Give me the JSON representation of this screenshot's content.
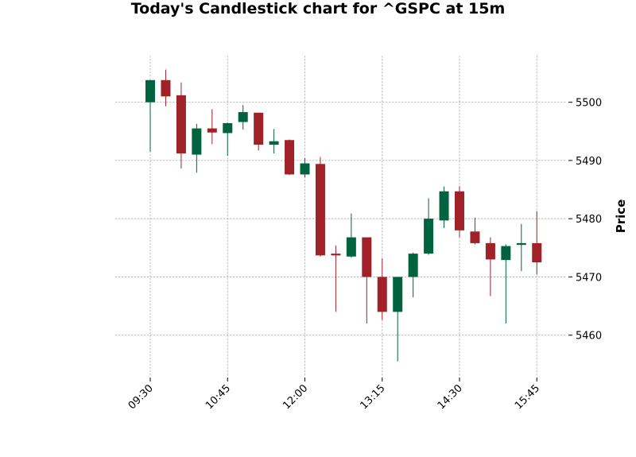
{
  "chart_data": {
    "type": "candlestick",
    "title": "Today's Candlestick chart for ^GSPC at 15m",
    "ylabel": "Price",
    "xlabel": "",
    "ylim": [
      5453,
      5508
    ],
    "y_ticks": [
      5460,
      5470,
      5480,
      5490,
      5500
    ],
    "x_tick_labels": [
      {
        "index": 0,
        "label": "09:30"
      },
      {
        "index": 5,
        "label": "10:45"
      },
      {
        "index": 10,
        "label": "12:00"
      },
      {
        "index": 15,
        "label": "13:15"
      },
      {
        "index": 20,
        "label": "14:30"
      },
      {
        "index": 25,
        "label": "15:45"
      }
    ],
    "grid": true,
    "up_color": "#006340",
    "down_color": "#a02128",
    "candles": [
      {
        "time": "09:30",
        "open": 5500.0,
        "high": 5503.8,
        "low": 5491.5,
        "close": 5503.8
      },
      {
        "time": "09:45",
        "open": 5503.8,
        "high": 5505.6,
        "low": 5499.3,
        "close": 5501.0
      },
      {
        "time": "10:00",
        "open": 5501.2,
        "high": 5503.4,
        "low": 5488.6,
        "close": 5491.2
      },
      {
        "time": "10:15",
        "open": 5491.0,
        "high": 5496.3,
        "low": 5487.9,
        "close": 5495.5
      },
      {
        "time": "10:30",
        "open": 5495.5,
        "high": 5498.8,
        "low": 5492.8,
        "close": 5494.8
      },
      {
        "time": "10:45",
        "open": 5494.7,
        "high": 5496.5,
        "low": 5490.8,
        "close": 5496.4
      },
      {
        "time": "11:00",
        "open": 5496.6,
        "high": 5499.5,
        "low": 5495.3,
        "close": 5498.3
      },
      {
        "time": "11:15",
        "open": 5498.2,
        "high": 5498.2,
        "low": 5491.7,
        "close": 5492.7
      },
      {
        "time": "11:30",
        "open": 5492.7,
        "high": 5495.4,
        "low": 5491.2,
        "close": 5493.3
      },
      {
        "time": "11:45",
        "open": 5493.5,
        "high": 5493.6,
        "low": 5487.5,
        "close": 5487.6
      },
      {
        "time": "12:00",
        "open": 5487.6,
        "high": 5490.4,
        "low": 5487.1,
        "close": 5489.5
      },
      {
        "time": "12:15",
        "open": 5489.4,
        "high": 5490.6,
        "low": 5473.5,
        "close": 5473.7
      },
      {
        "time": "12:30",
        "open": 5474.0,
        "high": 5475.4,
        "low": 5464.0,
        "close": 5473.7
      },
      {
        "time": "12:45",
        "open": 5473.5,
        "high": 5480.9,
        "low": 5473.3,
        "close": 5476.8
      },
      {
        "time": "13:00",
        "open": 5476.8,
        "high": 5476.8,
        "low": 5462.0,
        "close": 5470.0
      },
      {
        "time": "13:15",
        "open": 5470.0,
        "high": 5473.2,
        "low": 5462.6,
        "close": 5464.0
      },
      {
        "time": "13:30",
        "open": 5464.0,
        "high": 5470.0,
        "low": 5455.5,
        "close": 5470.0
      },
      {
        "time": "13:45",
        "open": 5470.0,
        "high": 5474.2,
        "low": 5466.5,
        "close": 5474.0
      },
      {
        "time": "14:00",
        "open": 5474.0,
        "high": 5483.5,
        "low": 5473.8,
        "close": 5480.0
      },
      {
        "time": "14:15",
        "open": 5479.7,
        "high": 5485.5,
        "low": 5478.4,
        "close": 5484.7
      },
      {
        "time": "14:30",
        "open": 5484.7,
        "high": 5485.6,
        "low": 5476.8,
        "close": 5478.0
      },
      {
        "time": "14:45",
        "open": 5477.8,
        "high": 5480.2,
        "low": 5475.6,
        "close": 5475.8
      },
      {
        "time": "15:00",
        "open": 5475.8,
        "high": 5476.8,
        "low": 5466.7,
        "close": 5473.0
      },
      {
        "time": "15:15",
        "open": 5472.9,
        "high": 5475.6,
        "low": 5462.0,
        "close": 5475.3
      },
      {
        "time": "15:30",
        "open": 5475.5,
        "high": 5479.1,
        "low": 5471.0,
        "close": 5475.8
      },
      {
        "time": "15:45",
        "open": 5475.8,
        "high": 5481.3,
        "low": 5470.4,
        "close": 5472.5
      }
    ]
  }
}
